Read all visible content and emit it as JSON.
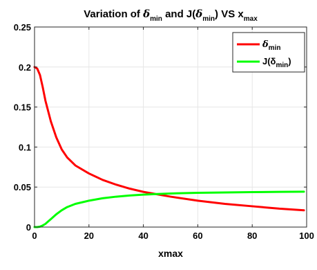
{
  "chart_data": {
    "type": "line",
    "title": {
      "prefix": "Variation of ",
      "delta": "δ",
      "min_sub": "min",
      "middle": " and J(",
      "after_delta": ") VS x",
      "max_sub": "max"
    },
    "xlabel": "xmax",
    "ylabel": "",
    "xlim": [
      0,
      100
    ],
    "ylim": [
      0,
      0.25
    ],
    "x_ticks": [
      0,
      20,
      40,
      60,
      80,
      100
    ],
    "y_ticks": [
      0,
      0.05,
      0.1,
      0.15,
      0.2,
      0.25
    ],
    "x_tick_labels": [
      "0",
      "20",
      "40",
      "60",
      "80",
      "100"
    ],
    "y_tick_labels": [
      "0",
      "0.05",
      "0.1",
      "0.15",
      "0.2",
      "0.25"
    ],
    "grid": true,
    "legend_position": "top-right",
    "series": [
      {
        "name": "δmin",
        "legend": {
          "main": "δ",
          "sub": "min",
          "suffix": ""
        },
        "color": "#ff0000",
        "x": [
          0,
          1,
          2,
          3,
          4,
          5,
          6,
          8,
          10,
          12,
          15,
          20,
          25,
          30,
          35,
          40,
          45,
          50,
          60,
          70,
          80,
          90,
          99
        ],
        "y": [
          0.2,
          0.198,
          0.19,
          0.175,
          0.158,
          0.145,
          0.132,
          0.112,
          0.097,
          0.087,
          0.077,
          0.067,
          0.059,
          0.053,
          0.048,
          0.044,
          0.041,
          0.038,
          0.033,
          0.029,
          0.026,
          0.023,
          0.021
        ]
      },
      {
        "name": "J(δmin)",
        "legend": {
          "main": "J(δ",
          "sub": "min",
          "suffix": ")"
        },
        "color": "#00ff00",
        "x": [
          0,
          1,
          2,
          3,
          4,
          5,
          6,
          8,
          10,
          12,
          15,
          20,
          25,
          30,
          35,
          40,
          45,
          50,
          60,
          70,
          80,
          90,
          99
        ],
        "y": [
          0,
          0.0,
          0.0005,
          0.002,
          0.004,
          0.007,
          0.01,
          0.016,
          0.021,
          0.025,
          0.029,
          0.033,
          0.036,
          0.038,
          0.0395,
          0.0405,
          0.0413,
          0.042,
          0.0428,
          0.0433,
          0.0437,
          0.044,
          0.0442
        ]
      }
    ]
  }
}
